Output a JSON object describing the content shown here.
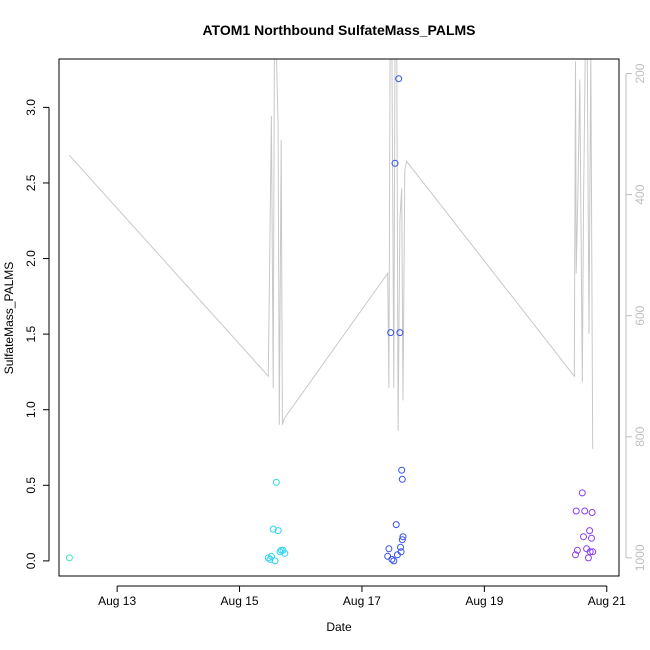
{
  "chart_data": {
    "type": "scatter",
    "title": "ATOM1 Northbound SulfateMass_PALMS",
    "xlabel": "Date",
    "ylabel": "SulfateMass_PALMS",
    "x_units": "day of August 2016",
    "xlim": [
      12.05,
      21.2
    ],
    "ylim": [
      -0.1,
      3.32
    ],
    "x_ticks": [
      13,
      15,
      17,
      19,
      21
    ],
    "x_tick_labels": [
      "Aug 13",
      "Aug 15",
      "Aug 17",
      "Aug 19",
      "Aug 21"
    ],
    "y_ticks": [
      0.0,
      0.5,
      1.0,
      1.5,
      2.0,
      2.5,
      3.0
    ],
    "y_tick_labels": [
      "0.0",
      "0.5",
      "1.0",
      "1.5",
      "2.0",
      "2.5",
      "3.0"
    ],
    "secondary_axis": {
      "position": "right",
      "reversed": true,
      "ylim": [
        1030,
        176
      ],
      "ticks": [
        200,
        400,
        600,
        800,
        1000
      ],
      "tick_labels": [
        "200",
        "400",
        "600",
        "800",
        "1000"
      ],
      "color": "#bebebe",
      "line": {
        "color": "#c8c8c8",
        "x": [
          12.22,
          15.47,
          15.52,
          15.55,
          15.57,
          15.6,
          15.63,
          15.65,
          15.68,
          15.7,
          15.73,
          17.42,
          17.44,
          17.46,
          17.49,
          17.52,
          17.54,
          17.57,
          17.59,
          17.62,
          17.65,
          17.67,
          17.7,
          17.73,
          20.47,
          20.49,
          20.5,
          20.53,
          20.56,
          20.6,
          20.62,
          20.65,
          20.68,
          20.71,
          20.74,
          20.77
        ],
        "y": [
          335,
          700,
          270,
          720,
          160,
          160,
          285,
          780,
          310,
          780,
          770,
          530,
          720,
          160,
          160,
          720,
          160,
          170,
          790,
          440,
          390,
          740,
          360,
          345,
          700,
          180,
          530,
          390,
          210,
          710,
          420,
          160,
          160,
          630,
          160,
          820
        ]
      }
    },
    "series": [
      {
        "color": "#3de8c0",
        "x": [
          12.22
        ],
        "y": [
          0.02
        ]
      },
      {
        "color": "#2ed3f2",
        "x": [
          15.47,
          15.5,
          15.52,
          15.55,
          15.58,
          15.6,
          15.63,
          15.66,
          15.68,
          15.71,
          15.74
        ],
        "y": [
          0.02,
          0.01,
          0.03,
          0.21,
          0.0,
          0.52,
          0.2,
          0.06,
          0.07,
          0.07,
          0.05
        ]
      },
      {
        "color": "#3550ee",
        "x": [
          17.42,
          17.44,
          17.47,
          17.49,
          17.52,
          17.54,
          17.56,
          17.58,
          17.6,
          17.62,
          17.63,
          17.64,
          17.65,
          17.66,
          17.67
        ],
        "y": [
          0.03,
          0.08,
          1.51,
          0.01,
          0.0,
          2.63,
          0.24,
          0.04,
          3.19,
          1.51,
          0.09,
          0.06,
          0.6,
          0.54,
          0.16
        ],
        "extra_x": [
          17.66
        ],
        "extra_y": [
          0.14
        ]
      },
      {
        "color": "#8a3ef0",
        "x": [
          20.49,
          20.5,
          20.52,
          20.6,
          20.62,
          20.64,
          20.67,
          20.7,
          20.72,
          20.73,
          20.75,
          20.76,
          20.77
        ],
        "y": [
          0.04,
          0.33,
          0.07,
          0.45,
          0.16,
          0.33,
          0.08,
          0.02,
          0.2,
          0.06,
          0.15,
          0.32,
          0.06
        ]
      }
    ]
  }
}
